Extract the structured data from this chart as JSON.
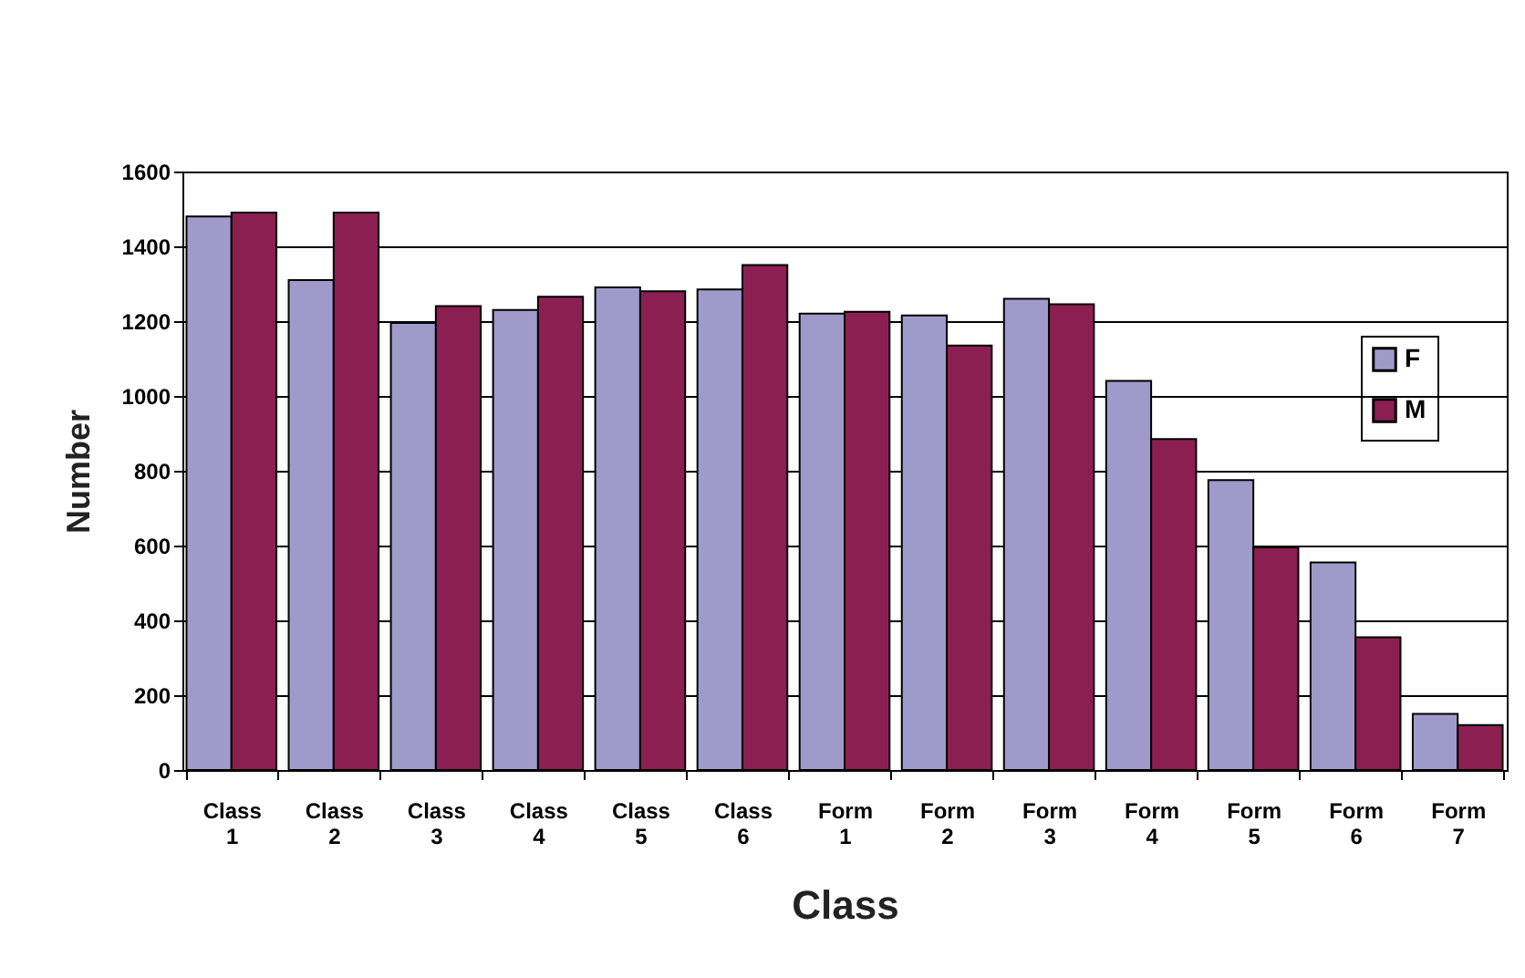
{
  "chart_data": {
    "type": "bar",
    "xlabel": "Class",
    "ylabel": "Number",
    "categories": [
      "Class 1",
      "Class 2",
      "Class 3",
      "Class 4",
      "Class 5",
      "Class 6",
      "Form 1",
      "Form 2",
      "Form 3",
      "Form 4",
      "Form 5",
      "Form 6",
      "Form 7"
    ],
    "series": [
      {
        "name": "F",
        "color": "#a09acb",
        "values": [
          1480,
          1310,
          1195,
          1230,
          1290,
          1285,
          1220,
          1215,
          1260,
          1040,
          775,
          555,
          150
        ]
      },
      {
        "name": "M",
        "color": "#8c1f52",
        "values": [
          1490,
          1490,
          1240,
          1265,
          1280,
          1350,
          1225,
          1135,
          1245,
          885,
          595,
          355,
          120
        ]
      }
    ],
    "ylim": [
      0,
      1600
    ],
    "yticks": [
      0,
      200,
      400,
      600,
      800,
      1000,
      1200,
      1400,
      1600
    ],
    "grid": "y",
    "legend": "right"
  }
}
